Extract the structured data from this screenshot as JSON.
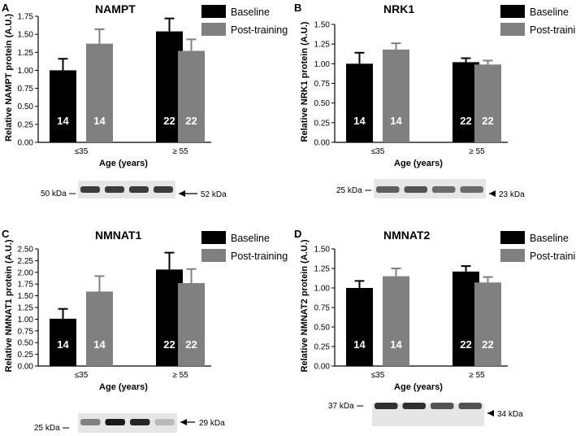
{
  "chart_data": [
    {
      "panel": "A",
      "type": "bar",
      "title": "NAMPT",
      "ylabel": "Relative NAMPT protein (A.U.)",
      "xlabel": "Age (years)",
      "categories": [
        "≤35",
        "≥ 55"
      ],
      "ylim": [
        0,
        1.75
      ],
      "yticks": [
        "0.00",
        "0.25",
        "0.50",
        "0.75",
        "1.00",
        "1.25",
        "1.50",
        "1.75"
      ],
      "series": [
        {
          "name": "Baseline",
          "color": "#000000",
          "values": [
            1.0,
            1.54
          ],
          "errors": [
            0.16,
            0.18
          ],
          "n_labels": [
            "14",
            "22"
          ]
        },
        {
          "name": "Post-training",
          "color": "#808080",
          "values": [
            1.37,
            1.27
          ],
          "errors": [
            0.2,
            0.16
          ],
          "n_labels": [
            "14",
            "22"
          ]
        }
      ],
      "blot": {
        "label_left": "50 kDa",
        "label_right": "52 kDa"
      }
    },
    {
      "panel": "B",
      "type": "bar",
      "title": "NRK1",
      "ylabel": "Relative NRK1 protein (A.U.)",
      "xlabel": "Age (years)",
      "categories": [
        "≤35",
        "≥ 55"
      ],
      "ylim": [
        0,
        1.5
      ],
      "yticks": [
        "0.00",
        "0.25",
        "0.50",
        "0.75",
        "1.00",
        "1.25",
        "1.50"
      ],
      "series": [
        {
          "name": "Baseline",
          "color": "#000000",
          "values": [
            1.0,
            1.02
          ],
          "errors": [
            0.14,
            0.05
          ],
          "n_labels": [
            "14",
            "22"
          ]
        },
        {
          "name": "Post-training",
          "color": "#808080",
          "values": [
            1.18,
            0.99
          ],
          "errors": [
            0.08,
            0.05
          ],
          "n_labels": [
            "14",
            "22"
          ]
        }
      ],
      "blot": {
        "label_left": "25 kDa",
        "label_right": "23 kDa"
      }
    },
    {
      "panel": "C",
      "type": "bar",
      "title": "NMNAT1",
      "ylabel": "Relative NMNAT1 protein (A.U.)",
      "xlabel": "Age (years)",
      "categories": [
        "≤35",
        "≥ 55"
      ],
      "ylim": [
        0,
        2.5
      ],
      "yticks": [
        "0.00",
        "0.25",
        "0.50",
        "0.75",
        "1.00",
        "1.25",
        "1.50",
        "1.75",
        "2.00",
        "2.25",
        "2.50"
      ],
      "series": [
        {
          "name": "Baseline",
          "color": "#000000",
          "values": [
            1.01,
            2.06
          ],
          "errors": [
            0.21,
            0.36
          ],
          "n_labels": [
            "14",
            "22"
          ]
        },
        {
          "name": "Post-training",
          "color": "#808080",
          "values": [
            1.59,
            1.77
          ],
          "errors": [
            0.33,
            0.3
          ],
          "n_labels": [
            "14",
            "22"
          ]
        }
      ],
      "blot": {
        "label_left": "25 kDa",
        "label_right": "29 kDa"
      }
    },
    {
      "panel": "D",
      "type": "bar",
      "title": "NMNAT2",
      "ylabel": "Relative NMNAT2 protein (A.U.)",
      "xlabel": "Age (years)",
      "categories": [
        "≤35",
        "≥ 55"
      ],
      "ylim": [
        0,
        1.5
      ],
      "yticks": [
        "0.00",
        "0.25",
        "0.50",
        "0.75",
        "1.00",
        "1.25",
        "1.50"
      ],
      "series": [
        {
          "name": "Baseline",
          "color": "#000000",
          "values": [
            1.0,
            1.21
          ],
          "errors": [
            0.09,
            0.07
          ],
          "n_labels": [
            "14",
            "22"
          ]
        },
        {
          "name": "Post-training",
          "color": "#808080",
          "values": [
            1.15,
            1.07
          ],
          "errors": [
            0.1,
            0.07
          ],
          "n_labels": [
            "14",
            "22"
          ]
        }
      ],
      "blot": {
        "label_left": "37 kDa",
        "label_right": "34 kDa"
      }
    }
  ]
}
